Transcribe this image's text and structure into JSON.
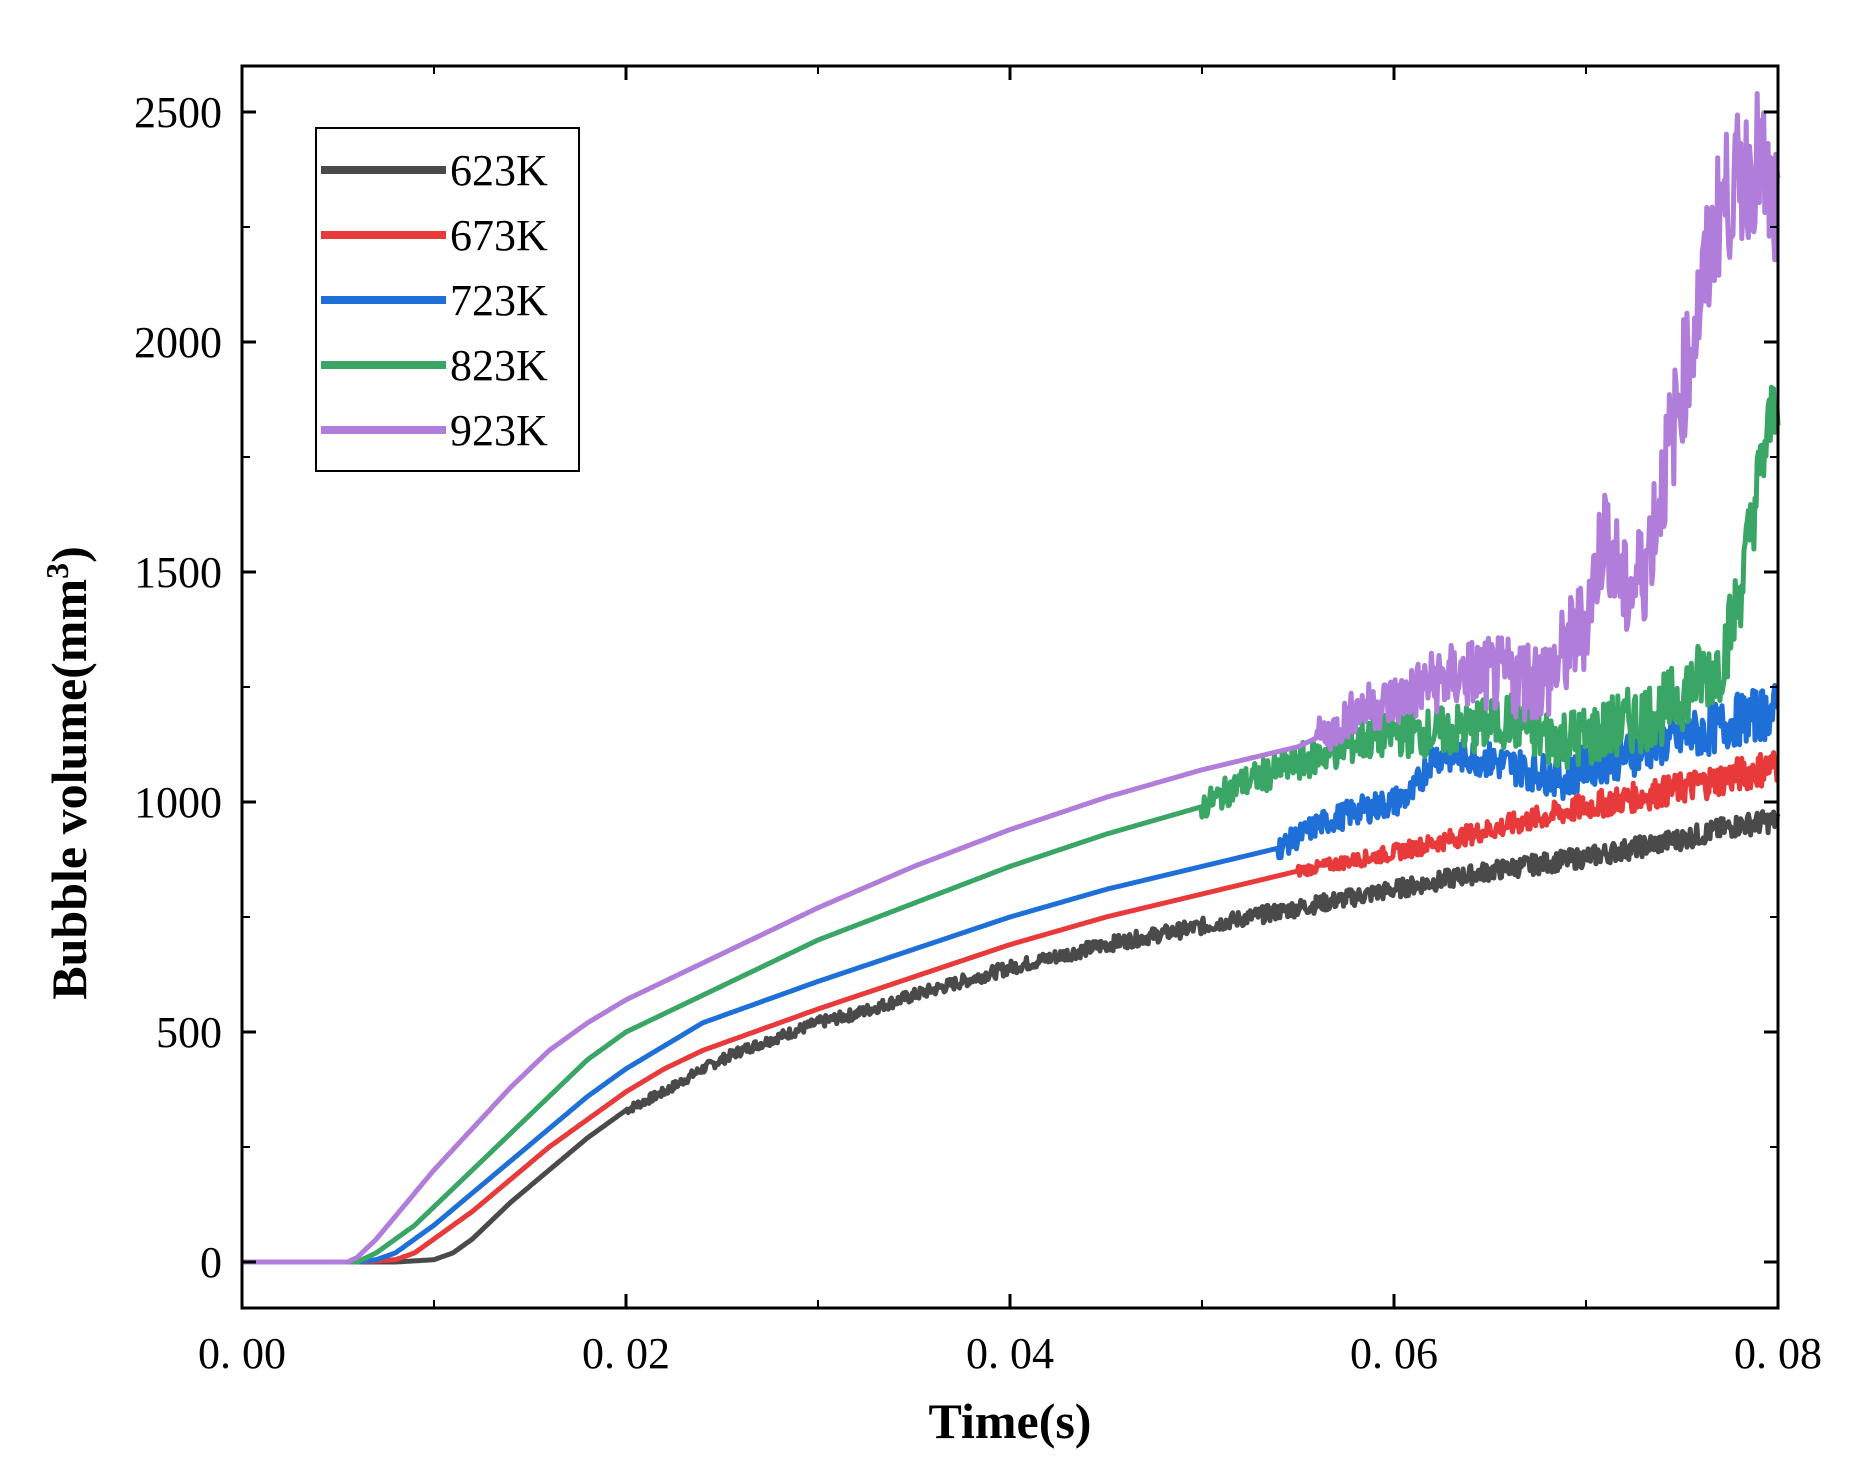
{
  "chart_data": {
    "type": "line",
    "title": "",
    "xlabel": "Time(s)",
    "ylabel_main": "Bubble volume(mm",
    "ylabel_sup": "3",
    "ylabel_close": ")",
    "xlim": [
      0,
      0.08
    ],
    "ylim": [
      -100,
      2600
    ],
    "x_ticks": [
      0,
      0.02,
      0.04,
      0.06,
      0.08
    ],
    "x_tick_labels": [
      "0. 00",
      "0. 02",
      "0. 04",
      "0. 06",
      "0. 08"
    ],
    "y_ticks": [
      0,
      500,
      1000,
      1500,
      2000,
      2500
    ],
    "y_tick_labels": [
      "0",
      "500",
      "1000",
      "1500",
      "2000",
      "2500"
    ],
    "grid": false,
    "legend_position": "top-left",
    "series": [
      {
        "name": "623K",
        "color": "#4a4a4a",
        "x": [
          0,
          0.0055,
          0.008,
          0.01,
          0.011,
          0.012,
          0.013,
          0.014,
          0.016,
          0.018,
          0.02,
          0.022,
          0.024,
          0.026,
          0.028,
          0.03,
          0.032,
          0.035,
          0.04,
          0.045,
          0.05,
          0.055,
          0.06,
          0.065,
          0.07,
          0.075,
          0.078,
          0.08
        ],
        "y": [
          0,
          0,
          0,
          5,
          20,
          50,
          90,
          130,
          200,
          270,
          330,
          370,
          420,
          460,
          490,
          520,
          540,
          580,
          640,
          690,
          730,
          770,
          810,
          850,
          880,
          920,
          950,
          960
        ],
        "noise_start": 0.02,
        "noise_amp": 10,
        "noise_amp_end": 25
      },
      {
        "name": "673K",
        "color": "#e83a3a",
        "x": [
          0,
          0.006,
          0.008,
          0.009,
          0.01,
          0.011,
          0.012,
          0.014,
          0.016,
          0.018,
          0.02,
          0.022,
          0.024,
          0.026,
          0.028,
          0.03,
          0.035,
          0.04,
          0.045,
          0.05,
          0.055,
          0.06,
          0.065,
          0.07,
          0.075,
          0.078,
          0.08
        ],
        "y": [
          0,
          0,
          5,
          20,
          50,
          80,
          110,
          180,
          250,
          310,
          370,
          420,
          460,
          490,
          520,
          550,
          620,
          690,
          750,
          800,
          850,
          890,
          940,
          990,
          1030,
          1060,
          1080
        ],
        "noise_start": 0.055,
        "noise_amp": 12,
        "noise_amp_end": 40
      },
      {
        "name": "723K",
        "color": "#1f6fd8",
        "x": [
          0,
          0.006,
          0.007,
          0.008,
          0.009,
          0.01,
          0.012,
          0.014,
          0.016,
          0.018,
          0.02,
          0.022,
          0.024,
          0.026,
          0.028,
          0.03,
          0.035,
          0.04,
          0.045,
          0.05,
          0.054,
          0.056,
          0.058,
          0.06,
          0.061,
          0.062,
          0.064,
          0.066,
          0.068,
          0.069,
          0.07,
          0.072,
          0.074,
          0.076,
          0.078,
          0.08
        ],
        "y": [
          0,
          0,
          5,
          20,
          50,
          80,
          150,
          220,
          290,
          360,
          420,
          470,
          520,
          550,
          580,
          610,
          680,
          750,
          810,
          860,
          900,
          950,
          980,
          1000,
          1020,
          1100,
          1100,
          1080,
          1060,
          1050,
          1080,
          1100,
          1130,
          1150,
          1180,
          1200
        ],
        "noise_start": 0.054,
        "noise_amp": 25,
        "noise_amp_end": 60
      },
      {
        "name": "823K",
        "color": "#3aa665",
        "x": [
          0,
          0.006,
          0.007,
          0.008,
          0.009,
          0.01,
          0.012,
          0.014,
          0.016,
          0.018,
          0.02,
          0.022,
          0.024,
          0.026,
          0.028,
          0.03,
          0.035,
          0.04,
          0.045,
          0.05,
          0.052,
          0.054,
          0.056,
          0.058,
          0.06,
          0.062,
          0.064,
          0.066,
          0.068,
          0.07,
          0.072,
          0.074,
          0.076,
          0.077,
          0.078,
          0.079,
          0.08
        ],
        "y": [
          0,
          0,
          20,
          50,
          80,
          120,
          200,
          280,
          360,
          440,
          500,
          540,
          580,
          620,
          660,
          700,
          780,
          860,
          930,
          990,
          1040,
          1070,
          1100,
          1130,
          1150,
          1150,
          1160,
          1180,
          1140,
          1140,
          1170,
          1200,
          1270,
          1300,
          1450,
          1700,
          1900
        ],
        "noise_start": 0.05,
        "noise_amp": 30,
        "noise_amp_end": 90
      },
      {
        "name": "923K",
        "color": "#b07ddb",
        "x": [
          0,
          0.0055,
          0.006,
          0.007,
          0.008,
          0.01,
          0.012,
          0.014,
          0.016,
          0.018,
          0.02,
          0.022,
          0.024,
          0.026,
          0.028,
          0.03,
          0.035,
          0.04,
          0.045,
          0.05,
          0.055,
          0.057,
          0.058,
          0.06,
          0.062,
          0.064,
          0.066,
          0.068,
          0.069,
          0.07,
          0.071,
          0.072,
          0.073,
          0.074,
          0.075,
          0.076,
          0.077,
          0.078,
          0.079,
          0.08
        ],
        "y": [
          0,
          0,
          10,
          50,
          100,
          200,
          290,
          380,
          460,
          520,
          570,
          610,
          650,
          690,
          730,
          770,
          860,
          940,
          1010,
          1070,
          1120,
          1160,
          1200,
          1220,
          1260,
          1280,
          1270,
          1270,
          1330,
          1400,
          1600,
          1450,
          1500,
          1700,
          1900,
          2100,
          2300,
          2350,
          2400,
          2250
        ],
        "noise_start": 0.056,
        "noise_amp": 40,
        "noise_amp_end": 160
      }
    ]
  }
}
